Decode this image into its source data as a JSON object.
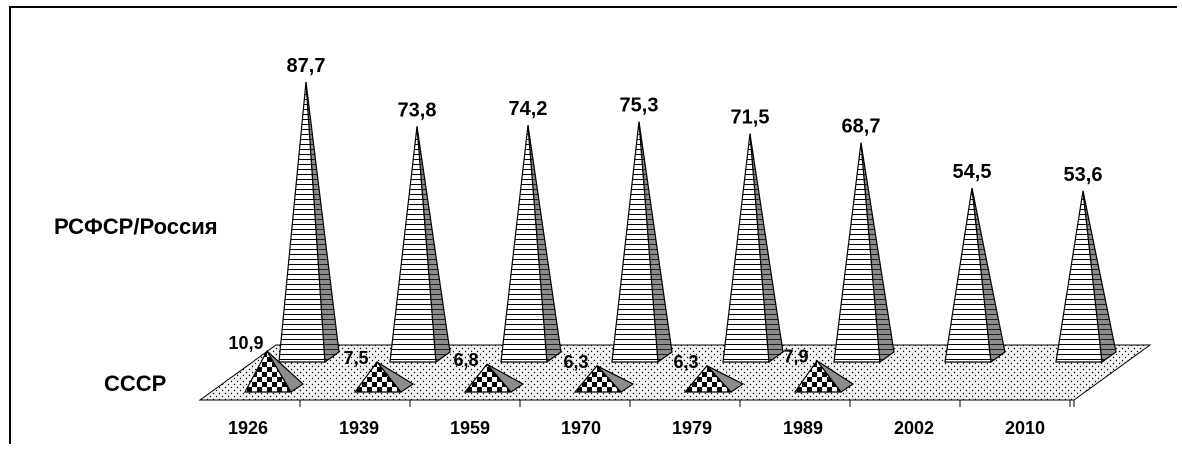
{
  "chart_data": {
    "type": "bar",
    "style": "3d-pyramid",
    "categories": [
      "1926",
      "1939",
      "1959",
      "1970",
      "1979",
      "1989",
      "2002",
      "2010"
    ],
    "series": [
      {
        "name": "РСФСР/Россия",
        "values": [
          87.7,
          73.8,
          74.2,
          75.3,
          71.5,
          68.7,
          54.5,
          53.6
        ],
        "value_labels": [
          "87,7",
          "73,8",
          "74,2",
          "75,3",
          "71,5",
          "68,7",
          "54,5",
          "53,6"
        ],
        "fill": "horizontal-stripes"
      },
      {
        "name": "СССР",
        "values": [
          10.9,
          7.5,
          6.8,
          6.3,
          6.3,
          7.9,
          null,
          null
        ],
        "value_labels": [
          "10,9",
          "7,5",
          "6,8",
          "6,3",
          "6,3",
          "7,9",
          "",
          ""
        ],
        "fill": "checkerboard"
      }
    ],
    "floor_fill": "dotted",
    "grid": false,
    "legend": "none"
  },
  "colors": {
    "stroke": "#000000",
    "face_front": "#ffffff",
    "face_side": "#8c8c8c",
    "floor": "#f4f4f4"
  }
}
